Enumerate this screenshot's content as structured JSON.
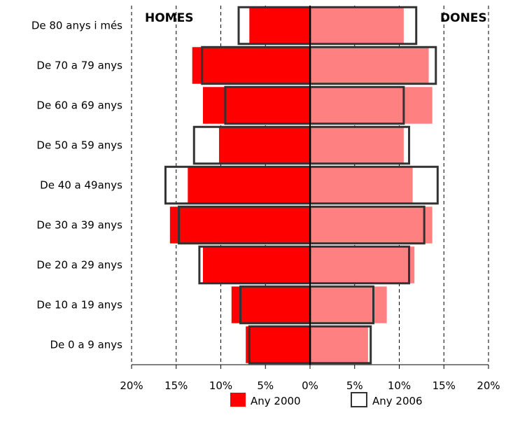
{
  "chart_data": {
    "type": "bar",
    "subtype": "population-pyramid",
    "orientation": "horizontal",
    "categories": [
      "De 80 anys i més",
      "De 70 a 79 anys",
      "De 60 a 69 anys",
      "De 50 a 59 anys",
      "De 40 a 49anys",
      "De 30 a 39 anys",
      "De 20 a 29 anys",
      "De 10 a 19 anys",
      "De 0 a 9 anys"
    ],
    "side_labels": {
      "left": "HOMES",
      "right": "DONES"
    },
    "series": [
      {
        "name": "Any 2000",
        "style": "filled",
        "homes": [
          6.8,
          13.2,
          12.0,
          10.2,
          13.7,
          15.7,
          12.0,
          8.8,
          7.2
        ],
        "dones": [
          10.5,
          13.3,
          13.7,
          10.5,
          11.5,
          13.7,
          11.7,
          8.6,
          6.5
        ]
      },
      {
        "name": "Any 2006",
        "style": "outline",
        "homes": [
          8.0,
          12.1,
          9.5,
          13.0,
          16.2,
          14.7,
          12.4,
          7.8,
          6.8
        ],
        "dones": [
          11.9,
          14.1,
          10.5,
          11.1,
          14.3,
          12.8,
          11.1,
          7.1,
          6.8
        ]
      }
    ],
    "x_ticks": [
      "20%",
      "15%",
      "10%",
      "5%",
      "0%",
      "5%",
      "10%",
      "15%",
      "20%"
    ],
    "xlim": [
      -20,
      20
    ],
    "grid": "vertical dashed",
    "legend": "bottom",
    "colors": {
      "homes_2000": "#ff0000",
      "dones_2000": "#ff8080",
      "outline_2006": "#333333"
    }
  }
}
